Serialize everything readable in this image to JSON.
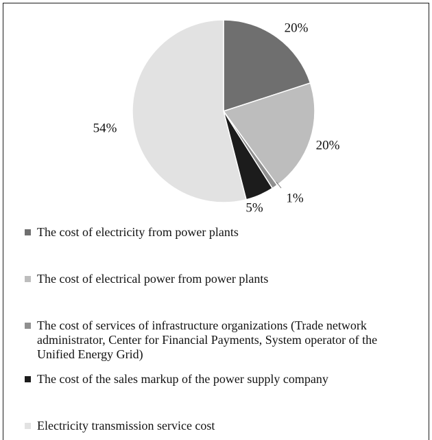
{
  "chart_data": {
    "type": "pie",
    "slices": [
      {
        "label": "The cost of electricity from power plants",
        "value": 20,
        "value_label": "20%",
        "color": "#6f6f6f"
      },
      {
        "label": "The cost of electrical power from power plants",
        "value": 20,
        "value_label": "20%",
        "color": "#bdbdbd"
      },
      {
        "label": "The cost of services of infrastructure organizations (Trade network administrator, Center for Financial Payments, System operator of the Unified Energy Grid)",
        "value": 1,
        "value_label": "1%",
        "color": "#8f8f8f"
      },
      {
        "label": "The cost of the sales markup of the power supply company",
        "value": 5,
        "value_label": "5%",
        "color": "#1c1c1c"
      },
      {
        "label": "Electricity transmission service cost",
        "value": 54,
        "value_label": "54%",
        "color": "#e2e2e2"
      }
    ],
    "start_angle": "12 o'clock",
    "direction": "clockwise",
    "legend_position": "bottom"
  }
}
